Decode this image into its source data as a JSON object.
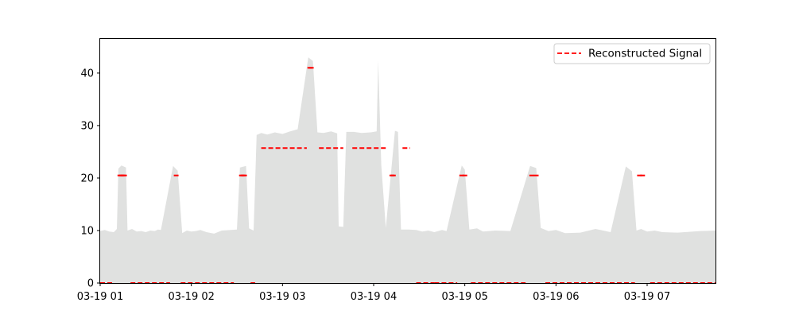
{
  "chart_data": {
    "type": "area",
    "title": "",
    "xlabel": "",
    "ylabel": "",
    "x_range": [
      "03-19 01:00",
      "03-19 07:45"
    ],
    "ylim": [
      0,
      46.5
    ],
    "y_ticks": [
      0,
      10,
      20,
      30,
      40
    ],
    "x_ticks": [
      {
        "t": 0,
        "label": "03-19 01"
      },
      {
        "t": 60,
        "label": "03-19 02"
      },
      {
        "t": 120,
        "label": "03-19 03"
      },
      {
        "t": 180,
        "label": "03-19 04"
      },
      {
        "t": 240,
        "label": "03-19 05"
      },
      {
        "t": 300,
        "label": "03-19 06"
      },
      {
        "t": 360,
        "label": "03-19 07"
      }
    ],
    "grid": false,
    "legend": {
      "position": "top-right",
      "entries": [
        "Reconstructed Signal"
      ]
    },
    "colors": {
      "area": "#e0e1e0",
      "signal": "#ff0000"
    },
    "x_unit": "minutes after 03-19 01:00",
    "area_series": {
      "name": "",
      "points": [
        [
          0,
          9.9
        ],
        [
          3,
          10.1
        ],
        [
          6,
          9.8
        ],
        [
          9,
          9.7
        ],
        [
          11,
          10.3
        ],
        [
          12,
          21.8
        ],
        [
          14,
          22.4
        ],
        [
          17,
          22.0
        ],
        [
          18,
          10.0
        ],
        [
          21,
          10.3
        ],
        [
          24,
          9.8
        ],
        [
          27,
          9.9
        ],
        [
          30,
          9.7
        ],
        [
          33,
          10.0
        ],
        [
          36,
          9.9
        ],
        [
          38,
          10.2
        ],
        [
          40,
          10.1
        ],
        [
          48,
          22.3
        ],
        [
          51,
          21.4
        ],
        [
          54,
          9.5
        ],
        [
          57,
          10.0
        ],
        [
          60,
          9.8
        ],
        [
          63,
          9.9
        ],
        [
          66,
          10.1
        ],
        [
          70,
          9.7
        ],
        [
          75,
          9.4
        ],
        [
          80,
          10.0
        ],
        [
          90,
          10.2
        ],
        [
          92,
          22.0
        ],
        [
          96,
          22.3
        ],
        [
          98,
          10.4
        ],
        [
          101,
          10.0
        ],
        [
          103,
          28.2
        ],
        [
          106,
          28.6
        ],
        [
          110,
          28.3
        ],
        [
          115,
          28.7
        ],
        [
          120,
          28.4
        ],
        [
          125,
          28.9
        ],
        [
          130,
          29.3
        ],
        [
          137,
          43.0
        ],
        [
          140,
          42.3
        ],
        [
          143,
          28.7
        ],
        [
          147,
          28.6
        ],
        [
          152,
          28.9
        ],
        [
          156,
          28.5
        ],
        [
          157,
          10.8
        ],
        [
          160,
          10.7
        ],
        [
          162,
          28.8
        ],
        [
          167,
          28.8
        ],
        [
          172,
          28.6
        ],
        [
          178,
          28.7
        ],
        [
          182,
          28.9
        ],
        [
          183,
          42.4
        ],
        [
          185,
          22.5
        ],
        [
          188,
          10.5
        ],
        [
          194,
          29.0
        ],
        [
          196,
          28.8
        ],
        [
          198,
          10.2
        ],
        [
          203,
          10.2
        ],
        [
          208,
          10.1
        ],
        [
          212,
          9.8
        ],
        [
          216,
          10.0
        ],
        [
          220,
          9.7
        ],
        [
          225,
          10.1
        ],
        [
          228,
          9.9
        ],
        [
          238,
          22.4
        ],
        [
          240,
          21.6
        ],
        [
          243,
          10.2
        ],
        [
          248,
          10.4
        ],
        [
          252,
          9.8
        ],
        [
          260,
          10.0
        ],
        [
          270,
          9.9
        ],
        [
          283,
          22.3
        ],
        [
          287,
          21.9
        ],
        [
          290,
          10.5
        ],
        [
          295,
          9.9
        ],
        [
          300,
          10.1
        ],
        [
          306,
          9.5
        ],
        [
          316,
          9.6
        ],
        [
          326,
          10.3
        ],
        [
          336,
          9.7
        ],
        [
          346,
          22.2
        ],
        [
          350,
          21.3
        ],
        [
          353,
          10.0
        ],
        [
          356,
          10.3
        ],
        [
          360,
          9.8
        ],
        [
          365,
          10.0
        ],
        [
          370,
          9.7
        ],
        [
          380,
          9.6
        ],
        [
          395,
          9.9
        ],
        [
          405,
          10.0
        ]
      ]
    },
    "series": [
      {
        "name": "Reconstructed Signal",
        "style": "dashed",
        "segments": [
          {
            "x": [
              0,
              9
            ],
            "y": 0
          },
          {
            "x": 13,
            "y": 20.5
          },
          {
            "x": 14,
            "y": 20.5
          },
          {
            "x": 15,
            "y": 20.5
          },
          {
            "x": 16,
            "y": 20.5
          },
          {
            "x": [
              20,
              46
            ],
            "y": 0
          },
          {
            "x": 50,
            "y": 20.5
          },
          {
            "x": [
              53,
              88
            ],
            "y": 0
          },
          {
            "x": 93,
            "y": 20.5
          },
          {
            "x": 94,
            "y": 20.5
          },
          {
            "x": 95,
            "y": 20.5
          },
          {
            "x": [
              99,
              102
            ],
            "y": 0
          },
          {
            "x": [
              106,
              136
            ],
            "y": 25.7
          },
          {
            "x": 138,
            "y": 41.0
          },
          {
            "x": 139,
            "y": 41.0
          },
          {
            "x": [
              144,
              160
            ],
            "y": 25.7
          },
          {
            "x": [
              166,
              188
            ],
            "y": 25.7
          },
          {
            "x": 192,
            "y": 20.5
          },
          {
            "x": 193,
            "y": 20.5
          },
          {
            "x": [
              199,
              204
            ],
            "y": 25.7
          },
          {
            "x": [
              208,
              220
            ],
            "y": 0
          },
          {
            "x": [
              220,
              235
            ],
            "y": 0
          },
          {
            "x": 238,
            "y": 20.5
          },
          {
            "x": 240,
            "y": 20.5
          },
          {
            "x": [
              244,
              280
            ],
            "y": 0
          },
          {
            "x": 284,
            "y": 20.5
          },
          {
            "x": 287,
            "y": 20.5
          },
          {
            "x": [
              293,
              352
            ],
            "y": 0
          },
          {
            "x": 355,
            "y": 20.5
          },
          {
            "x": 357,
            "y": 20.5
          },
          {
            "x": [
              362,
              405
            ],
            "y": 0
          }
        ]
      }
    ]
  }
}
